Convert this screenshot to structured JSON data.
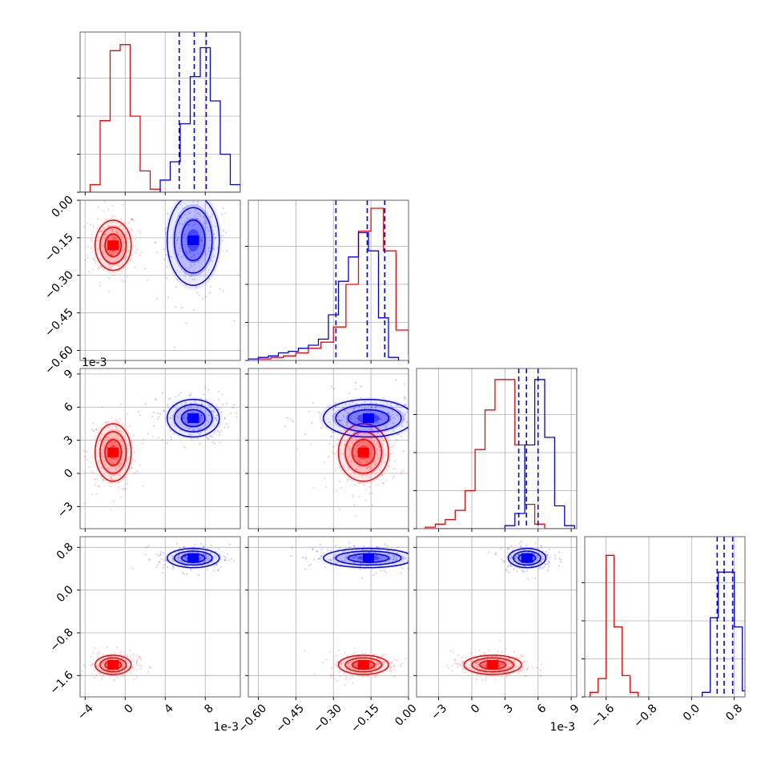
{
  "colors": {
    "red": "#ff0000",
    "blue": "#0000ff",
    "frame": "#555555",
    "grid": "#b0b0b0"
  },
  "chart_data": {
    "type": "corner",
    "dimensions": 4,
    "parameters": [
      {
        "range": [
          -4.5,
          11.5
        ],
        "ticks": [
          -4,
          0,
          4,
          8
        ],
        "tick_labels": [
          "−4",
          "0",
          "4",
          "8"
        ],
        "offset_label": "1e-3"
      },
      {
        "range": [
          -0.64,
          0.0
        ],
        "ticks": [
          -0.6,
          -0.45,
          -0.3,
          -0.15,
          0.0
        ],
        "tick_labels": [
          "−0.60",
          "−0.45",
          "−0.30",
          "−0.15",
          "0.00"
        ],
        "offset_label": ""
      },
      {
        "range": [
          -5.0,
          9.5
        ],
        "ticks": [
          -3,
          0,
          3,
          6,
          9
        ],
        "tick_labels": [
          "−3",
          "0",
          "3",
          "6",
          "9"
        ],
        "offset_label": "1e-3"
      },
      {
        "range": [
          -2.0,
          1.0
        ],
        "ticks": [
          -1.6,
          -0.8,
          0.0,
          0.8
        ],
        "tick_labels": [
          "−1.6",
          "−0.8",
          "0.0",
          "0.8"
        ],
        "offset_label": ""
      }
    ],
    "series": [
      {
        "color": "red",
        "mean": [
          -1.2,
          -0.18,
          1.9,
          -1.4
        ],
        "std": [
          0.9,
          0.05,
          1.3,
          0.09
        ],
        "quantiles": null,
        "hist_bins": [
          [
            0,
            0.05,
            0.47,
            0.93,
            0.97,
            0.5,
            0.14,
            0.02,
            0,
            0,
            0,
            0,
            0,
            0,
            0,
            0
          ],
          [
            0.01,
            0.02,
            0.03,
            0.05,
            0.08,
            0.12,
            0.22,
            0.5,
            0.85,
            1.0,
            0.72,
            0.2,
            0.04
          ],
          [
            0.01,
            0.03,
            0.06,
            0.12,
            0.25,
            0.52,
            0.78,
            0.98,
            0.98,
            0.55,
            0.16,
            0.03,
            0,
            0,
            0
          ],
          [
            0.03,
            0.12,
            0.93,
            0.46,
            0.14,
            0.03
          ]
        ],
        "hist_edges": [
          [
            -4.5,
            -3.5,
            -2.5,
            -1.5,
            -0.5,
            0.5,
            1.5,
            2.5,
            3.5,
            4.5,
            5.5,
            6.5,
            7.5,
            8.5,
            9.5,
            10.5,
            11.5
          ],
          [
            -0.6,
            -0.55,
            -0.5,
            -0.45,
            -0.4,
            -0.35,
            -0.3,
            -0.25,
            -0.2,
            -0.15,
            -0.1,
            -0.05,
            0.0,
            0.02
          ],
          [
            -4.2,
            -3.3,
            -2.4,
            -1.5,
            -0.6,
            0.3,
            1.2,
            2.1,
            3.0,
            3.9,
            4.8,
            5.7,
            6.6,
            7.5,
            8.4,
            9.3
          ],
          [
            -1.9,
            -1.75,
            -1.6,
            -1.45,
            -1.3,
            -1.15,
            -1.0
          ]
        ]
      },
      {
        "color": "blue",
        "mean": [
          6.8,
          -0.16,
          5.0,
          0.6
        ],
        "std": [
          1.3,
          0.09,
          0.85,
          0.09
        ],
        "quantiles": [
          [
            5.4,
            6.9,
            8.1
          ],
          [
            -0.29,
            -0.165,
            -0.095
          ],
          [
            4.25,
            4.95,
            6.0
          ],
          [
            0.48,
            0.61,
            0.77
          ]
        ],
        "hist_bins": [
          [
            0,
            0,
            0,
            0,
            0,
            0,
            0,
            0,
            0.08,
            0.2,
            0.45,
            0.76,
            0.95,
            0.6,
            0.25,
            0.05,
            0.01
          ],
          [
            0.01,
            0.02,
            0.03,
            0.05,
            0.06,
            0.08,
            0.1,
            0.14,
            0.3,
            0.52,
            0.68,
            0.84,
            0.72,
            0.28,
            0.02
          ],
          [
            0,
            0,
            0,
            0,
            0,
            0,
            0,
            0,
            0.02,
            0.1,
            0.55,
            0.98,
            0.6,
            0.15,
            0.02
          ],
          [
            0.03,
            0.52,
            0.82,
            0.82,
            0.46,
            0.04
          ]
        ],
        "hist_edges": [
          [
            -4.5,
            -3.5,
            -2.5,
            -1.5,
            -0.5,
            0.5,
            1.5,
            2.5,
            3.5,
            4.5,
            5.5,
            6.5,
            7.5,
            8.5,
            9.5,
            10.5,
            11.5,
            12.5
          ],
          [
            -0.64,
            -0.6,
            -0.56,
            -0.52,
            -0.48,
            -0.44,
            -0.4,
            -0.36,
            -0.32,
            -0.28,
            -0.24,
            -0.2,
            -0.16,
            -0.12,
            -0.08,
            -0.04
          ],
          [
            -4.2,
            -3.3,
            -2.4,
            -1.5,
            -0.6,
            0.3,
            1.2,
            2.1,
            3.0,
            3.9,
            4.8,
            5.7,
            6.6,
            7.5,
            8.4,
            9.3
          ],
          [
            0.2,
            0.35,
            0.5,
            0.65,
            0.8,
            0.95,
            1.1
          ]
        ]
      }
    ],
    "grid": true,
    "legend": "none"
  }
}
